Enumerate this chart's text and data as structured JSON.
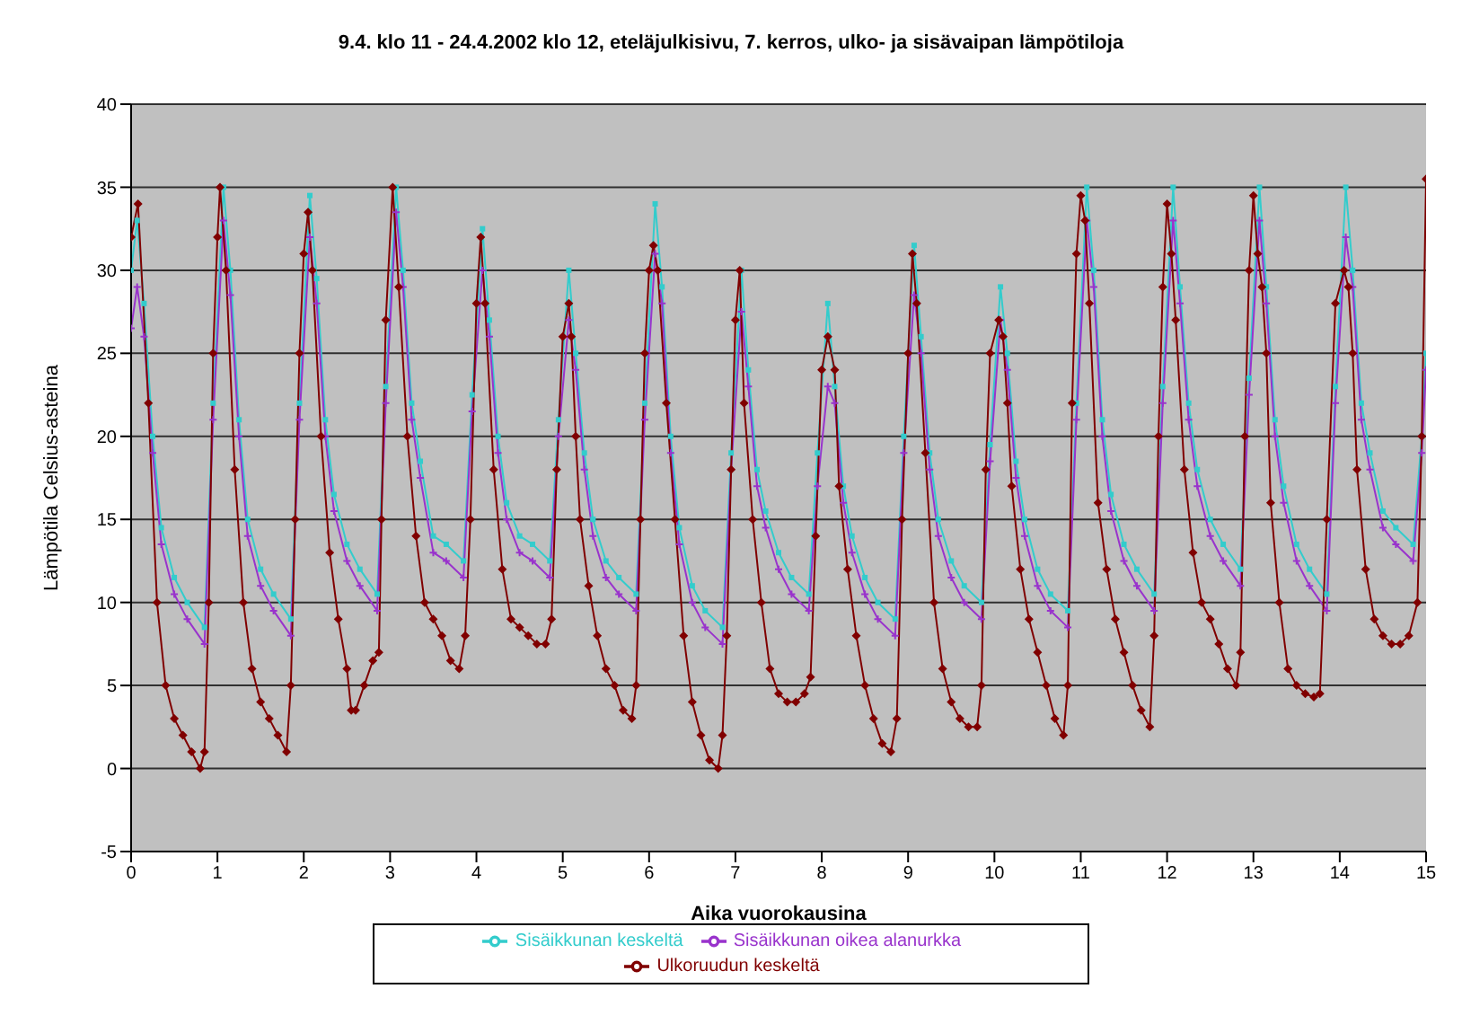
{
  "chart_data": {
    "type": "line",
    "title": "9.4. klo 11 - 24.4.2002 klo 12, eteläjulkisivu, 7. kerros, ulko- ja sisävaipan lämpötiloja",
    "xlabel": "Aika vuorokausina",
    "ylabel": "Lämpötila Celsius-asteina",
    "xlim": [
      0,
      15
    ],
    "xticks": [
      0,
      1,
      2,
      3,
      4,
      5,
      6,
      7,
      8,
      9,
      10,
      11,
      12,
      13,
      14,
      15
    ],
    "ylim": [
      -5,
      40
    ],
    "yticks": [
      -5,
      0,
      5,
      10,
      15,
      20,
      25,
      30,
      35,
      40
    ],
    "grid": "y",
    "legend": "bottom",
    "series": [
      {
        "name": "Sisäikkunan keskeltä",
        "color": "#33cccc",
        "marker": "square",
        "x": [
          0,
          0.07,
          0.15,
          0.25,
          0.35,
          0.5,
          0.65,
          0.85,
          0.95,
          1.07,
          1.15,
          1.25,
          1.35,
          1.5,
          1.65,
          1.85,
          1.95,
          2.07,
          2.15,
          2.25,
          2.35,
          2.5,
          2.65,
          2.85,
          2.95,
          3.07,
          3.15,
          3.25,
          3.35,
          3.5,
          3.65,
          3.85,
          3.95,
          4.07,
          4.15,
          4.25,
          4.35,
          4.5,
          4.65,
          4.85,
          4.95,
          5.07,
          5.15,
          5.25,
          5.35,
          5.5,
          5.65,
          5.85,
          5.95,
          6.07,
          6.15,
          6.25,
          6.35,
          6.5,
          6.65,
          6.85,
          6.95,
          7.07,
          7.15,
          7.25,
          7.35,
          7.5,
          7.65,
          7.85,
          7.95,
          8.07,
          8.15,
          8.25,
          8.35,
          8.5,
          8.65,
          8.85,
          8.95,
          9.07,
          9.15,
          9.25,
          9.35,
          9.5,
          9.65,
          9.85,
          9.95,
          10.07,
          10.15,
          10.25,
          10.35,
          10.5,
          10.65,
          10.85,
          10.95,
          11.07,
          11.15,
          11.25,
          11.35,
          11.5,
          11.65,
          11.85,
          11.95,
          12.07,
          12.15,
          12.25,
          12.35,
          12.5,
          12.65,
          12.85,
          12.95,
          13.07,
          13.15,
          13.25,
          13.35,
          13.5,
          13.65,
          13.85,
          13.95,
          14.07,
          14.15,
          14.25,
          14.35,
          14.5,
          14.65,
          14.85,
          14.95,
          15
        ],
        "values": [
          30,
          33,
          28,
          20,
          14.5,
          11.5,
          10,
          8.5,
          22,
          35,
          30,
          21,
          15,
          12,
          10.5,
          9,
          22,
          34.5,
          29.5,
          21,
          16.5,
          13.5,
          12,
          10.5,
          23,
          35,
          30,
          22,
          18.5,
          14,
          13.5,
          12.5,
          22.5,
          32.5,
          27,
          20,
          16,
          14,
          13.5,
          12.5,
          21,
          30,
          25,
          19,
          15,
          12.5,
          11.5,
          10.5,
          22,
          34,
          29,
          20,
          14.5,
          11,
          9.5,
          8.5,
          19,
          30,
          24,
          18,
          15.5,
          13,
          11.5,
          10.5,
          19,
          28,
          23,
          17,
          14,
          11.5,
          10,
          9,
          20,
          31.5,
          26,
          19,
          15,
          12.5,
          11,
          10,
          19.5,
          29,
          25,
          18.5,
          15,
          12,
          10.5,
          9.5,
          22,
          35,
          30,
          21,
          16.5,
          13.5,
          12,
          10.5,
          23,
          35,
          29,
          22,
          18,
          15,
          13.5,
          12,
          23.5,
          35,
          29,
          21,
          17,
          13.5,
          12,
          10.5,
          23,
          35,
          30,
          22,
          19,
          15.5,
          14.5,
          13.5,
          20,
          25
        ]
      },
      {
        "name": "Sisäikkunan oikea alanurkka",
        "color": "#9933cc",
        "marker": "cross",
        "x": [
          0,
          0.07,
          0.15,
          0.25,
          0.35,
          0.5,
          0.65,
          0.85,
          0.95,
          1.07,
          1.15,
          1.25,
          1.35,
          1.5,
          1.65,
          1.85,
          1.95,
          2.07,
          2.15,
          2.25,
          2.35,
          2.5,
          2.65,
          2.85,
          2.95,
          3.07,
          3.15,
          3.25,
          3.35,
          3.5,
          3.65,
          3.85,
          3.95,
          4.07,
          4.15,
          4.25,
          4.35,
          4.5,
          4.65,
          4.85,
          4.95,
          5.07,
          5.15,
          5.25,
          5.35,
          5.5,
          5.65,
          5.85,
          5.95,
          6.07,
          6.15,
          6.25,
          6.35,
          6.5,
          6.65,
          6.85,
          6.95,
          7.07,
          7.15,
          7.25,
          7.35,
          7.5,
          7.65,
          7.85,
          7.95,
          8.07,
          8.15,
          8.25,
          8.35,
          8.5,
          8.65,
          8.85,
          8.95,
          9.07,
          9.15,
          9.25,
          9.35,
          9.5,
          9.65,
          9.85,
          9.95,
          10.07,
          10.15,
          10.25,
          10.35,
          10.5,
          10.65,
          10.85,
          10.95,
          11.07,
          11.15,
          11.25,
          11.35,
          11.5,
          11.65,
          11.85,
          11.95,
          12.07,
          12.15,
          12.25,
          12.35,
          12.5,
          12.65,
          12.85,
          12.95,
          13.07,
          13.15,
          13.25,
          13.35,
          13.5,
          13.65,
          13.85,
          13.95,
          14.07,
          14.15,
          14.25,
          14.35,
          14.5,
          14.65,
          14.85,
          14.95,
          15
        ],
        "values": [
          26.5,
          29,
          26,
          19,
          13.5,
          10.5,
          9,
          7.5,
          21,
          33,
          28.5,
          20,
          14,
          11,
          9.5,
          8,
          21,
          32,
          28,
          20,
          15.5,
          12.5,
          11,
          9.5,
          22,
          33.5,
          29,
          21,
          17.5,
          13,
          12.5,
          11.5,
          21.5,
          30,
          26,
          19,
          15,
          13,
          12.5,
          11.5,
          20,
          27,
          24,
          18,
          14,
          11.5,
          10.5,
          9.5,
          21,
          31,
          28,
          19,
          13.5,
          10,
          8.5,
          7.5,
          18,
          27.5,
          23,
          17,
          14.5,
          12,
          10.5,
          9.5,
          17,
          23,
          22,
          16,
          13,
          10.5,
          9,
          8,
          19,
          28.5,
          25,
          18,
          14,
          11.5,
          10,
          9,
          18.5,
          27,
          24,
          17.5,
          14,
          11,
          9.5,
          8.5,
          21,
          33,
          29,
          20,
          15.5,
          12.5,
          11,
          9.5,
          22,
          33,
          28,
          21,
          17,
          14,
          12.5,
          11,
          22.5,
          33,
          28,
          20,
          16,
          12.5,
          11,
          9.5,
          22,
          32,
          29,
          21,
          18,
          14.5,
          13.5,
          12.5,
          19,
          24
        ]
      },
      {
        "name": "Ulkoruudun keskeltä",
        "color": "#800000",
        "marker": "diamond",
        "x": [
          0,
          0.08,
          0.2,
          0.3,
          0.4,
          0.5,
          0.6,
          0.7,
          0.8,
          0.85,
          0.9,
          0.95,
          1.0,
          1.03,
          1.1,
          1.2,
          1.3,
          1.4,
          1.5,
          1.6,
          1.7,
          1.8,
          1.85,
          1.9,
          1.95,
          2.0,
          2.05,
          2.1,
          2.2,
          2.3,
          2.4,
          2.5,
          2.55,
          2.6,
          2.7,
          2.8,
          2.87,
          2.9,
          2.95,
          3.03,
          3.1,
          3.2,
          3.3,
          3.4,
          3.5,
          3.6,
          3.7,
          3.8,
          3.87,
          3.93,
          4.0,
          4.05,
          4.1,
          4.2,
          4.3,
          4.4,
          4.5,
          4.6,
          4.7,
          4.8,
          4.87,
          4.93,
          5.0,
          5.07,
          5.1,
          5.15,
          5.2,
          5.3,
          5.4,
          5.5,
          5.6,
          5.7,
          5.8,
          5.85,
          5.9,
          5.95,
          6.0,
          6.05,
          6.1,
          6.2,
          6.3,
          6.4,
          6.5,
          6.6,
          6.7,
          6.8,
          6.85,
          6.9,
          6.95,
          7.0,
          7.05,
          7.1,
          7.2,
          7.3,
          7.4,
          7.5,
          7.6,
          7.7,
          7.8,
          7.87,
          7.93,
          8.0,
          8.07,
          8.15,
          8.2,
          8.3,
          8.4,
          8.5,
          8.6,
          8.7,
          8.8,
          8.87,
          8.93,
          9.0,
          9.05,
          9.1,
          9.2,
          9.3,
          9.4,
          9.5,
          9.6,
          9.7,
          9.8,
          9.85,
          9.9,
          9.95,
          10.05,
          10.1,
          10.15,
          10.2,
          10.3,
          10.4,
          10.5,
          10.6,
          10.7,
          10.8,
          10.85,
          10.9,
          10.95,
          11.0,
          11.05,
          11.1,
          11.2,
          11.3,
          11.4,
          11.5,
          11.6,
          11.7,
          11.8,
          11.85,
          11.9,
          11.95,
          12.0,
          12.05,
          12.1,
          12.2,
          12.3,
          12.4,
          12.5,
          12.6,
          12.7,
          12.8,
          12.85,
          12.9,
          12.95,
          13.0,
          13.05,
          13.1,
          13.15,
          13.2,
          13.3,
          13.4,
          13.5,
          13.6,
          13.7,
          13.77,
          13.85,
          13.95,
          14.05,
          14.1,
          14.15,
          14.2,
          14.3,
          14.4,
          14.5,
          14.6,
          14.7,
          14.8,
          14.9,
          14.95,
          15.0
        ],
        "values": [
          32,
          34,
          22,
          10,
          5,
          3,
          2,
          1,
          0,
          1,
          10,
          25,
          32,
          35,
          30,
          18,
          10,
          6,
          4,
          3,
          2,
          1,
          5,
          15,
          25,
          31,
          33.5,
          30,
          20,
          13,
          9,
          6,
          3.5,
          3.5,
          5,
          6.5,
          7,
          15,
          27,
          35,
          29,
          20,
          14,
          10,
          9,
          8,
          6.5,
          6,
          8,
          15,
          28,
          32,
          28,
          18,
          12,
          9,
          8.5,
          8,
          7.5,
          7.5,
          9,
          18,
          26,
          28,
          26,
          20,
          15,
          11,
          8,
          6,
          5,
          3.5,
          3,
          5,
          15,
          25,
          30,
          31.5,
          30,
          22,
          15,
          8,
          4,
          2,
          0.5,
          0,
          2,
          8,
          18,
          27,
          30,
          22,
          15,
          10,
          6,
          4.5,
          4,
          4,
          4.5,
          5.5,
          14,
          24,
          26,
          24,
          17,
          12,
          8,
          5,
          3,
          1.5,
          1,
          3,
          15,
          25,
          31,
          28,
          19,
          10,
          6,
          4,
          3,
          2.5,
          2.5,
          5,
          18,
          25,
          27,
          26,
          22,
          17,
          12,
          9,
          7,
          5,
          3,
          2,
          5,
          22,
          31,
          34.5,
          33,
          28,
          16,
          12,
          9,
          7,
          5,
          3.5,
          2.5,
          8,
          20,
          29,
          34,
          31,
          27,
          18,
          13,
          10,
          9,
          7.5,
          6,
          5,
          7,
          20,
          30,
          34.5,
          31,
          29,
          25,
          16,
          10,
          6,
          5,
          4.5,
          4.3,
          4.5,
          15,
          28,
          30,
          29,
          25,
          18,
          12,
          9,
          8,
          7.5,
          7.5,
          8,
          10,
          20,
          35.5
        ]
      }
    ]
  }
}
